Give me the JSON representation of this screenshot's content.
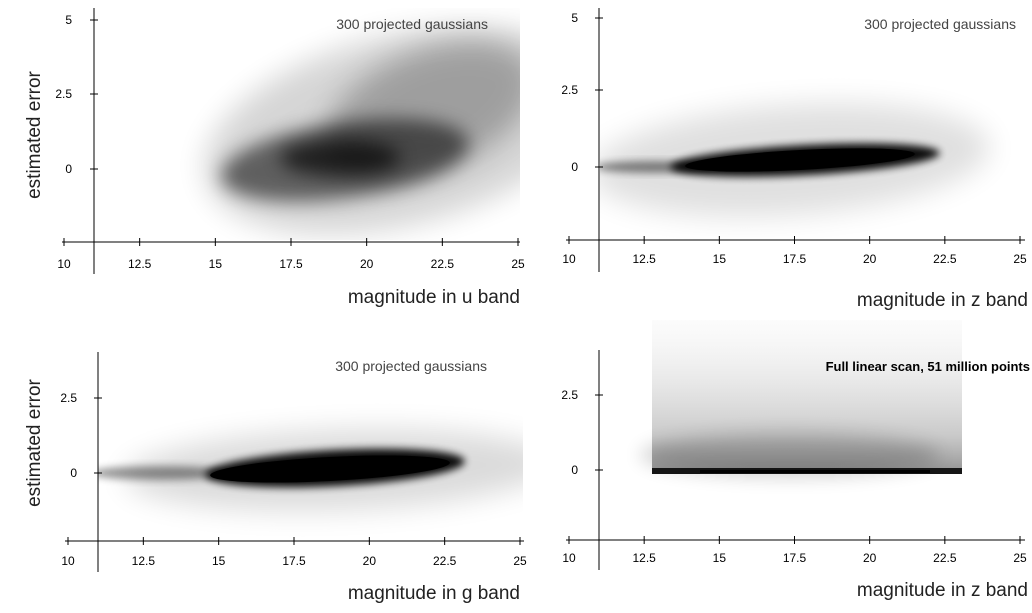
{
  "figure": {
    "panels_row_label": "estimated error"
  },
  "chart_data": [
    {
      "type": "heatmap",
      "title": "300 projected gaussians",
      "xlabel": "magnitude in u band",
      "ylabel": "estimated error",
      "x_ticks": [
        "10",
        "12.5",
        "15",
        "17.5",
        "20",
        "22.5",
        "25"
      ],
      "y_ticks": [
        "5",
        "2.5",
        "0"
      ],
      "xlim": [
        10,
        25
      ],
      "ylim": [
        -2.5,
        5
      ],
      "density": [
        {
          "x": 19.5,
          "y": 0.2,
          "sx": 3.6,
          "sy": 0.75,
          "tilt": 0.18,
          "weight": 0.9
        },
        {
          "x": 22.0,
          "y": 1.2,
          "sx": 3.0,
          "sy": 1.4,
          "tilt": 0.3,
          "weight": 0.55
        }
      ]
    },
    {
      "type": "heatmap",
      "title": "300 projected gaussians",
      "xlabel": "magnitude in z band",
      "ylabel": "",
      "x_ticks": [
        "10",
        "12.5",
        "15",
        "17.5",
        "20",
        "22.5",
        "25"
      ],
      "y_ticks": [
        "5",
        "2.5",
        "0"
      ],
      "xlim": [
        10,
        25
      ],
      "ylim": [
        -2.5,
        5
      ],
      "density": [
        {
          "x": 17.5,
          "y": 0.15,
          "sx": 3.6,
          "sy": 0.22,
          "tilt": 0.04,
          "weight": 2.2
        },
        {
          "x": 13.0,
          "y": 0.0,
          "sx": 1.6,
          "sy": 0.15,
          "tilt": 0.0,
          "weight": 0.6
        }
      ]
    },
    {
      "type": "heatmap",
      "title": "300 projected gaussians",
      "xlabel": "magnitude in g band",
      "ylabel": "estimated error",
      "x_ticks": [
        "10",
        "12.5",
        "15",
        "17.5",
        "20",
        "22.5",
        "25"
      ],
      "y_ticks": [
        "2.5",
        "0"
      ],
      "xlim": [
        10,
        25
      ],
      "ylim": [
        -2.5,
        4
      ],
      "density": [
        {
          "x": 18.5,
          "y": 0.1,
          "sx": 4.2,
          "sy": 0.3,
          "tilt": 0.05,
          "weight": 2.4
        },
        {
          "x": 13.0,
          "y": 0.0,
          "sx": 1.5,
          "sy": 0.14,
          "tilt": 0.0,
          "weight": 0.6
        }
      ]
    },
    {
      "type": "heatmap",
      "title": "Full linear scan, 51 million points",
      "xlabel": "magnitude in z band",
      "ylabel": "",
      "x_ticks": [
        "10",
        "12.5",
        "15",
        "17.5",
        "20",
        "22.5",
        "25"
      ],
      "y_ticks": [
        "2.5",
        "0"
      ],
      "xlim": [
        10,
        25
      ],
      "ylim": [
        -2.5,
        4
      ],
      "data_range_x": [
        12.7,
        23.0
      ],
      "data_range_y": [
        -0.1,
        4.0
      ]
    }
  ]
}
